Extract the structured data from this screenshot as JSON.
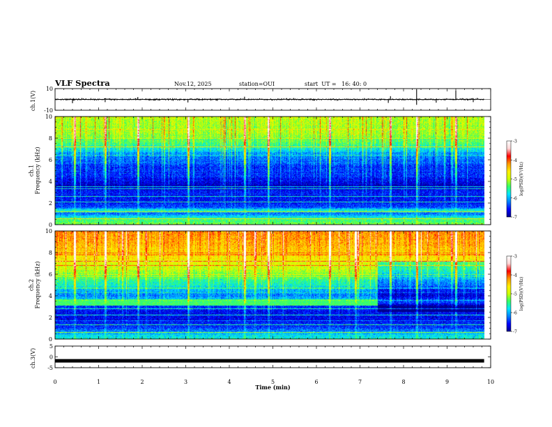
{
  "header": {
    "title": "VLF Spectra",
    "date": "Nov.12, 2025",
    "station": "station=OUI",
    "start": "start  UT =   16: 40: 0"
  },
  "colors": {
    "ramp": [
      "#00008b",
      "#0000ff",
      "#0080ff",
      "#00e5ff",
      "#33ff66",
      "#ccff00",
      "#ffee00",
      "#ff9900",
      "#ff0000",
      "#ffd6d6",
      "#ffffff"
    ],
    "line": "#000000"
  },
  "chart_data": [
    {
      "type": "line",
      "id": "ch1-waveform",
      "ylabel": "ch.1(V)",
      "ylim": [
        -10,
        10
      ],
      "yticks": [
        {
          "v": 10,
          "label": "10"
        },
        {
          "v": -10,
          "label": "-10"
        }
      ],
      "baseline": 0,
      "noise": 0.6,
      "spikes": [
        {
          "t": 0.4,
          "v": -3.5
        },
        {
          "t": 1.15,
          "v": -2.5
        },
        {
          "t": 1.9,
          "v": 2.2
        },
        {
          "t": 3.05,
          "v": -2.8
        },
        {
          "t": 4.35,
          "v": 2.5
        },
        {
          "t": 7.7,
          "v": 3.0
        },
        {
          "t": 7.65,
          "v": -3.2
        },
        {
          "t": 8.3,
          "v": 9.5
        },
        {
          "t": 8.3,
          "v": -5.0
        },
        {
          "t": 8.75,
          "v": -3.0
        },
        {
          "t": 9.2,
          "v": 8.5
        },
        {
          "t": 9.6,
          "v": -2.5
        }
      ]
    },
    {
      "type": "heatmap",
      "id": "ch1-spectrogram",
      "ylabel": "ch.1\nFrequency (kHz)",
      "ylim": [
        0,
        10
      ],
      "yticks": [
        0,
        2,
        4,
        6,
        8,
        10
      ],
      "colorbar": {
        "label": "log(PSD)(V²/Hz)",
        "range": [
          -7,
          -3
        ],
        "ticks": [
          -3,
          -4,
          -5,
          -6,
          -7
        ]
      },
      "intensity_profile": [
        {
          "f": 0.0,
          "v": -5.2
        },
        {
          "f": 0.6,
          "v": -5.6
        },
        {
          "f": 1.0,
          "v": -6.3
        },
        {
          "f": 1.3,
          "v": -5.6
        },
        {
          "f": 1.6,
          "v": -6.4
        },
        {
          "f": 2.2,
          "v": -6.6
        },
        {
          "f": 3.0,
          "v": -6.6
        },
        {
          "f": 3.6,
          "v": -6.8
        },
        {
          "f": 4.5,
          "v": -6.5
        },
        {
          "f": 5.5,
          "v": -6.4
        },
        {
          "f": 6.5,
          "v": -6.1
        },
        {
          "f": 7.5,
          "v": -5.4
        },
        {
          "f": 8.5,
          "v": -5.1
        },
        {
          "f": 10.0,
          "v": -5.0
        }
      ],
      "tone_lines_khz": [
        0.5,
        1.2,
        2.1,
        2.6,
        3.3,
        3.5,
        7.2
      ],
      "impulse_times_min": [
        0.45,
        1.15,
        1.9,
        3.05,
        4.35,
        4.9,
        6.3,
        7.7,
        8.3,
        9.2
      ]
    },
    {
      "type": "heatmap",
      "id": "ch2-spectrogram",
      "ylabel": "ch.2\nFrequency (kHz)",
      "ylim": [
        0,
        10
      ],
      "yticks": [
        0,
        2,
        4,
        6,
        8,
        10
      ],
      "colorbar": {
        "label": "log(PSD)(V²/Hz)",
        "range": [
          -7,
          -3
        ],
        "ticks": [
          -3,
          -4,
          -5,
          -6,
          -7
        ]
      },
      "intensity_profile": [
        {
          "f": 0.0,
          "v": -5.6
        },
        {
          "f": 1.0,
          "v": -6.4
        },
        {
          "f": 2.0,
          "v": -6.7
        },
        {
          "f": 3.0,
          "v": -6.5
        },
        {
          "f": 3.3,
          "v": -5.9
        },
        {
          "f": 3.6,
          "v": -5.8
        },
        {
          "f": 4.0,
          "v": -6.2
        },
        {
          "f": 5.0,
          "v": -5.7
        },
        {
          "f": 6.0,
          "v": -5.2
        },
        {
          "f": 7.0,
          "v": -4.8
        },
        {
          "f": 8.0,
          "v": -4.5
        },
        {
          "f": 9.0,
          "v": -4.3
        },
        {
          "f": 10.0,
          "v": -4.2
        }
      ],
      "band": {
        "f_khz": 3.4,
        "width_khz": 0.6,
        "t_end_min": 7.4,
        "v": -5.4
      },
      "after_band_offset": -0.6,
      "tone_lines_khz": [
        0.6,
        1.3,
        2.2,
        2.8,
        6.8,
        7.2
      ],
      "impulse_times_min": [
        0.45,
        1.15,
        1.9,
        3.05,
        4.35,
        4.9,
        6.3,
        6.9,
        7.7,
        8.3,
        9.2
      ]
    },
    {
      "type": "line",
      "id": "ch3-waveform",
      "ylabel": "ch.3(V)",
      "ylim": [
        -5,
        5
      ],
      "yticks": [
        {
          "v": 5,
          "label": "5"
        },
        {
          "v": 0,
          "label": "0"
        },
        {
          "v": -5,
          "label": "-5"
        }
      ],
      "baseline": -1.8,
      "noise": 0.0
    }
  ],
  "time_axis": {
    "label": "Time (min)",
    "range": [
      0,
      10
    ],
    "ticks": [
      0,
      1,
      2,
      3,
      4,
      5,
      6,
      7,
      8,
      9,
      10
    ],
    "data_end": 9.85
  }
}
